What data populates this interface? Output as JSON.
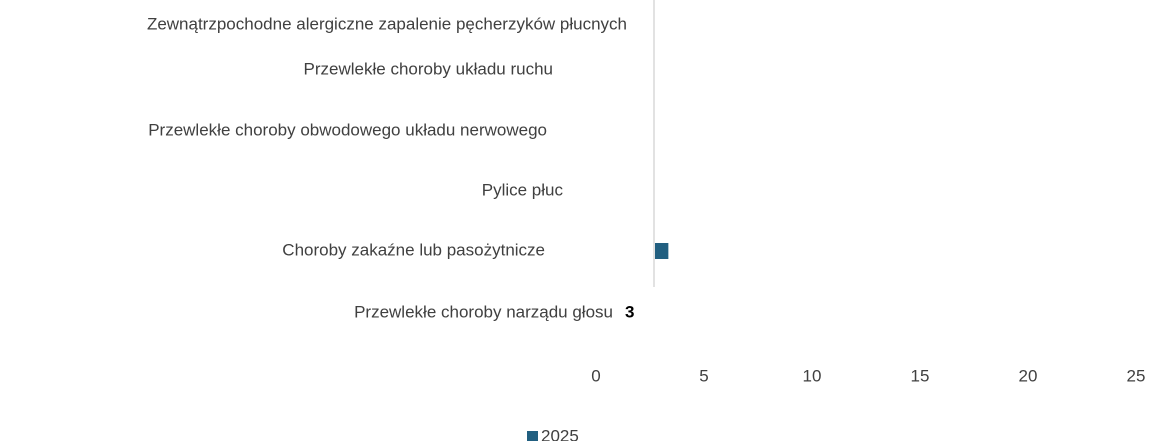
{
  "chart_data": {
    "type": "hbar",
    "categories": [
      "Zewnątrzpochodne alergiczne zapalenie pęcherzyków płucnych",
      "Przewlekłe choroby układu ruchu",
      "Przewlekłe choroby obwodowego układu nerwowego",
      "Pylice płuc",
      "Choroby zakaźne lub pasożytnicze",
      "Przewlekłe choroby  narządu głosu"
    ],
    "series": [
      {
        "name": "2025",
        "color": "#215f80",
        "values": [
          0,
          0,
          0,
          0,
          0.6,
          3
        ],
        "value_labels": [
          null,
          null,
          null,
          null,
          null,
          "3"
        ]
      }
    ],
    "xlim": [
      0,
      25
    ],
    "xticks": [
      0,
      5,
      10,
      15,
      20,
      25
    ],
    "legend": "bottom"
  }
}
